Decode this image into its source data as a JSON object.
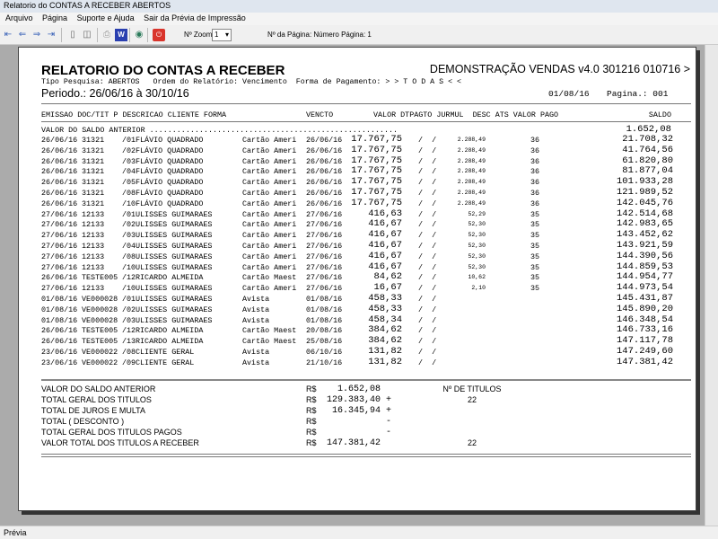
{
  "window": {
    "title": "Relatorio do CONTAS A RECEBER ABERTOS"
  },
  "menu": [
    "Arquivo",
    "Página",
    "Suporte e Ajuda",
    "Sair da Prévia de Impressão"
  ],
  "toolbar": {
    "zoom_label": "Nº Zoom",
    "zoom_value": "1",
    "page_label": "Nº da Página: Número Página: 1",
    "icons": [
      "first-page-icon",
      "prev-page-icon",
      "next-page-icon",
      "last-page-icon",
      "single-page-icon",
      "two-pages-icon",
      "print-icon",
      "word-export-icon",
      "web-export-icon",
      "close-icon"
    ]
  },
  "report": {
    "title": "RELATORIO DO CONTAS A RECEBER",
    "company": "DEMONSTRAÇÃO VENDAS v4.0 301216 010716 >",
    "filters": "Tipo Pesquisa: ABERTOS   Ordem do Relatório: Vencimento  Forma de Pagamento: > > T O D A S < <",
    "period": "Periodo.: 26/06/16 à 30/10/16",
    "date": "01/08/16",
    "page": "Pagina.: 001",
    "columns": "EMISSAO DOC/TIT P DESCRICAO CLIENTE FORMA",
    "col_vencto": "VENCTO",
    "col_rest": "VALOR DTPAGTO JURMUL  DESC ATS VALOR PAGO",
    "col_saldo": "SALDO",
    "saldo_anterior_label": "VALOR DO SALDO ANTERIOR .......................................................",
    "saldo_anterior": "1.652,08",
    "rows": [
      [
        "26/06/16",
        "31321",
        "/01",
        "FLÁVIO QUADRADO",
        "Cartão Ameri",
        "26/06/16",
        "17.767,75",
        "/  /",
        "2.288,49",
        "36",
        "21.708,32"
      ],
      [
        "26/06/16",
        "31321",
        "/02",
        "FLÁVIO QUADRADO",
        "Cartão Ameri",
        "26/06/16",
        "17.767,75",
        "/  /",
        "2.288,49",
        "36",
        "41.764,56"
      ],
      [
        "26/06/16",
        "31321",
        "/03",
        "FLÁVIO QUADRADO",
        "Cartão Ameri",
        "26/06/16",
        "17.767,75",
        "/  /",
        "2.288,49",
        "36",
        "61.820,80"
      ],
      [
        "26/06/16",
        "31321",
        "/04",
        "FLÁVIO QUADRADO",
        "Cartão Ameri",
        "26/06/16",
        "17.767,75",
        "/  /",
        "2.288,49",
        "36",
        "81.877,04"
      ],
      [
        "26/06/16",
        "31321",
        "/05",
        "FLÁVIO QUADRADO",
        "Cartão Ameri",
        "26/06/16",
        "17.767,75",
        "/  /",
        "2.288,49",
        "36",
        "101.933,28"
      ],
      [
        "26/06/16",
        "31321",
        "/08",
        "FLÁVIO QUADRADO",
        "Cartão Ameri",
        "26/06/16",
        "17.767,75",
        "/  /",
        "2.288,49",
        "36",
        "121.989,52"
      ],
      [
        "26/06/16",
        "31321",
        "/10",
        "FLÁVIO QUADRADO",
        "Cartão Ameri",
        "26/06/16",
        "17.767,75",
        "/  /",
        "2.288,49",
        "36",
        "142.045,76"
      ],
      [
        "27/06/16",
        "12133",
        "/01",
        "ULISSES GUIMARAES",
        "Cartão Ameri",
        "27/06/16",
        "416,63",
        "/  /",
        "52,29",
        "35",
        "142.514,68"
      ],
      [
        "27/06/16",
        "12133",
        "/02",
        "ULISSES GUIMARAES",
        "Cartão Ameri",
        "27/06/16",
        "416,67",
        "/  /",
        "52,30",
        "35",
        "142.983,65"
      ],
      [
        "27/06/16",
        "12133",
        "/03",
        "ULISSES GUIMARAES",
        "Cartão Ameri",
        "27/06/16",
        "416,67",
        "/  /",
        "52,30",
        "35",
        "143.452,62"
      ],
      [
        "27/06/16",
        "12133",
        "/04",
        "ULISSES GUIMARAES",
        "Cartão Ameri",
        "27/06/16",
        "416,67",
        "/  /",
        "52,30",
        "35",
        "143.921,59"
      ],
      [
        "27/06/16",
        "12133",
        "/08",
        "ULISSES GUIMARAES",
        "Cartão Ameri",
        "27/06/16",
        "416,67",
        "/  /",
        "52,30",
        "35",
        "144.390,56"
      ],
      [
        "27/06/16",
        "12133",
        "/10",
        "ULISSES GUIMARAES",
        "Cartão Ameri",
        "27/06/16",
        "416,67",
        "/  /",
        "52,30",
        "35",
        "144.859,53"
      ],
      [
        "26/06/16",
        "TESTE005",
        "/12",
        "RICARDO ALMEIDA",
        "Cartão Maest",
        "27/06/16",
        "84,62",
        "/  /",
        "10,62",
        "35",
        "144.954,77"
      ],
      [
        "27/06/16",
        "12133",
        "/10",
        "ULISSES GUIMARAES",
        "Cartão Ameri",
        "27/06/16",
        "16,67",
        "/  /",
        "2,10",
        "35",
        "144.973,54"
      ],
      [
        "01/08/16",
        "VE000028",
        "/01",
        "ULISSES GUIMARAES",
        "Avista",
        "01/08/16",
        "458,33",
        "/  /",
        "",
        "",
        "145.431,87"
      ],
      [
        "01/08/16",
        "VE000028",
        "/02",
        "ULISSES GUIMARAES",
        "Avista",
        "01/08/16",
        "458,33",
        "/  /",
        "",
        "",
        "145.890,20"
      ],
      [
        "01/08/16",
        "VE000028",
        "/03",
        "ULISSES GUIMARAES",
        "Avista",
        "01/08/16",
        "458,34",
        "/  /",
        "",
        "",
        "146.348,54"
      ],
      [
        "26/06/16",
        "TESTE005",
        "/12",
        "RICARDO ALMEIDA",
        "Cartão Maest",
        "20/08/16",
        "384,62",
        "/  /",
        "",
        "",
        "146.733,16"
      ],
      [
        "26/06/16",
        "TESTE005",
        "/13",
        "RICARDO ALMEIDA",
        "Cartão Maest",
        "25/08/16",
        "384,62",
        "/  /",
        "",
        "",
        "147.117,78"
      ],
      [
        "23/06/16",
        "VE000022",
        "/08",
        "CLIENTE GERAL",
        "Avista",
        "06/10/16",
        "131,82",
        "/  /",
        "",
        "",
        "147.249,60"
      ],
      [
        "23/06/16",
        "VE000022",
        "/09",
        "CLIENTE GERAL",
        "Avista",
        "21/10/16",
        "131,82",
        "/  /",
        "",
        "",
        "147.381,42"
      ]
    ],
    "summary": [
      {
        "label": "VALOR DO SALDO ANTERIOR",
        "cur": "R$",
        "value": "1.652,08",
        "sign": "",
        "extra": "Nº DE TITULOS"
      },
      {
        "label": "TOTAL GERAL DOS TITULOS",
        "cur": "R$",
        "value": "129.383,40",
        "sign": "+",
        "extra": "22"
      },
      {
        "label": "TOTAL DE JUROS E MULTA",
        "cur": "R$",
        "value": "16.345,94",
        "sign": "+",
        "extra": ""
      },
      {
        "label": "TOTAL ( DESCONTO )",
        "cur": "R$",
        "value": "",
        "sign": "-",
        "extra": ""
      },
      {
        "label": "TOTAL GERAL DOS TITULOS PAGOS",
        "cur": "R$",
        "value": "",
        "sign": "-",
        "extra": ""
      },
      {
        "label": "VALOR TOTAL DOS TITULOS A RECEBER",
        "cur": "R$",
        "value": "147.381,42",
        "sign": "",
        "extra": "22"
      }
    ]
  },
  "status": "Prévia"
}
